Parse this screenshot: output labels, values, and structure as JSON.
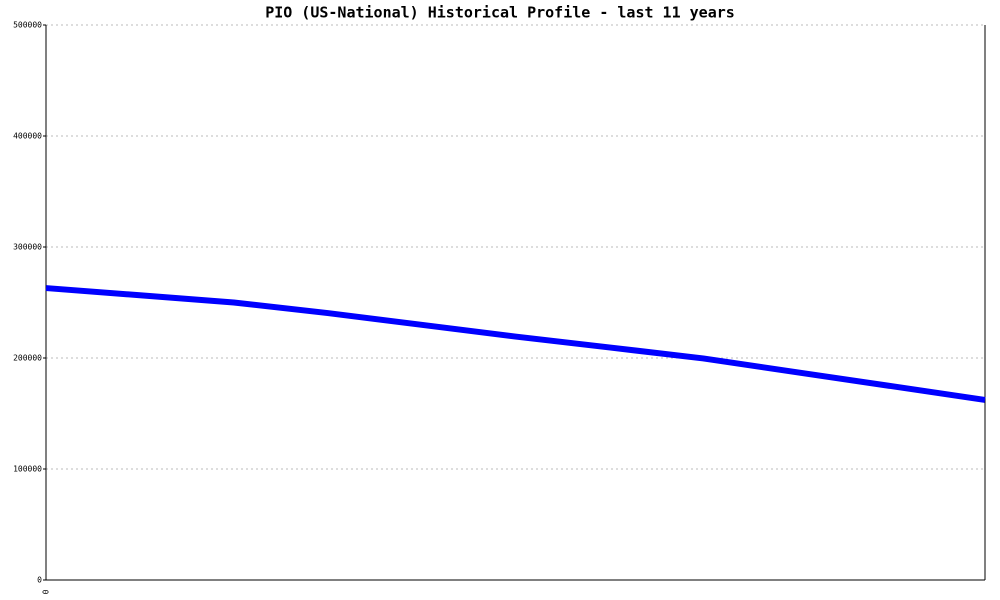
{
  "chart_data": {
    "type": "line",
    "title": "PIO (US-National) Historical Profile - last 11 years",
    "categories": [
      "0",
      null,
      null,
      null,
      null,
      null,
      null,
      null,
      null,
      null,
      null
    ],
    "values": [
      263000,
      256500,
      250000,
      240500,
      229900,
      219300,
      209500,
      199600,
      187100,
      174700,
      162200
    ],
    "color": "#0000ff",
    "ylim": [
      0,
      500000
    ],
    "yticks": [
      0,
      100000,
      200000,
      300000,
      400000,
      500000
    ],
    "grid": true
  }
}
